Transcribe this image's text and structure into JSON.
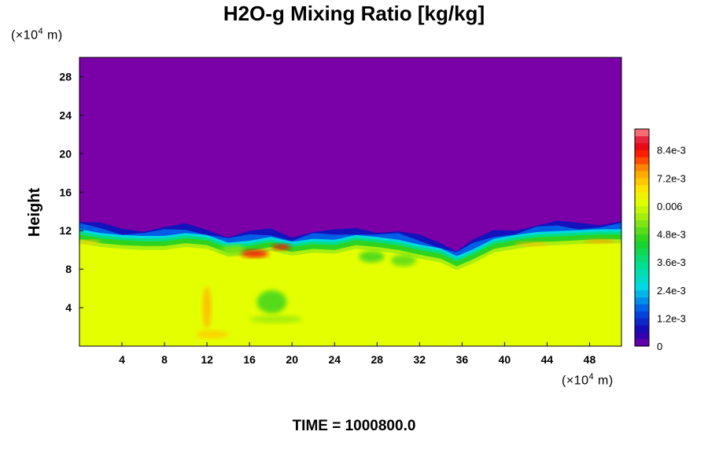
{
  "chart_data": {
    "type": "heatmap",
    "title": "H2O-g Mixing Ratio [kg/kg]",
    "ylabel": "Height",
    "xunit": {
      "prefix": "(×10",
      "exp": "4",
      "suffix": " m)"
    },
    "yunit": {
      "prefix": "(×10",
      "exp": "4",
      "suffix": " m)"
    },
    "xlim": [
      0,
      51
    ],
    "ylim": [
      0,
      30
    ],
    "xticks": [
      "4",
      "8",
      "12",
      "16",
      "20",
      "24",
      "28",
      "32",
      "36",
      "40",
      "44",
      "48"
    ],
    "xtick_values": [
      4,
      8,
      12,
      16,
      20,
      24,
      28,
      32,
      36,
      40,
      44,
      48
    ],
    "yticks": [
      "4",
      "8",
      "12",
      "16",
      "20",
      "24",
      "28"
    ],
    "ytick_values": [
      4,
      8,
      12,
      16,
      20,
      24,
      28
    ],
    "colorbar": {
      "min": 0,
      "max": 0.0093,
      "labels": [
        "0",
        "1.2e-3",
        "2.4e-3",
        "3.6e-3",
        "4.8e-3",
        "0.006",
        "7.2e-3",
        "8.4e-3"
      ],
      "label_values": [
        0,
        0.0012,
        0.0024,
        0.0036,
        0.0048,
        0.006,
        0.0072,
        0.0084
      ],
      "stops": [
        {
          "v": 0.0,
          "c": "#7a00a8"
        },
        {
          "v": 0.0006,
          "c": "#1a00b0"
        },
        {
          "v": 0.0015,
          "c": "#0050e6"
        },
        {
          "v": 0.0025,
          "c": "#00d8e8"
        },
        {
          "v": 0.0035,
          "c": "#00e090"
        },
        {
          "v": 0.0045,
          "c": "#20d020"
        },
        {
          "v": 0.0055,
          "c": "#a0ec10"
        },
        {
          "v": 0.0062,
          "c": "#e4ff00"
        },
        {
          "v": 0.0068,
          "c": "#ffe000"
        },
        {
          "v": 0.0075,
          "c": "#ffa000"
        },
        {
          "v": 0.0082,
          "c": "#ff2000"
        },
        {
          "v": 0.0087,
          "c": "#e00020"
        },
        {
          "v": 0.0093,
          "c": "#ff9090"
        }
      ]
    },
    "field": {
      "upper_value": 0,
      "lower_value": 0.0062,
      "interface_height": [
        [
          0,
          11.6
        ],
        [
          2,
          11.2
        ],
        [
          4,
          11.0
        ],
        [
          6,
          10.9
        ],
        [
          8,
          10.9
        ],
        [
          10,
          11.2
        ],
        [
          12,
          11.0
        ],
        [
          14,
          10.2
        ],
        [
          16,
          10.4
        ],
        [
          18,
          10.8
        ],
        [
          20,
          10.3
        ],
        [
          22,
          10.6
        ],
        [
          24,
          10.5
        ],
        [
          26,
          11.0
        ],
        [
          28,
          10.8
        ],
        [
          30,
          10.5
        ],
        [
          32,
          10.0
        ],
        [
          34,
          9.6
        ],
        [
          35.5,
          8.8
        ],
        [
          37,
          9.5
        ],
        [
          39,
          10.6
        ],
        [
          41,
          11.0
        ],
        [
          43,
          11.3
        ],
        [
          45,
          11.4
        ],
        [
          47,
          11.5
        ],
        [
          49,
          11.6
        ],
        [
          51,
          11.6
        ]
      ],
      "features": [
        {
          "kind": "dry_blob",
          "x": 18.1,
          "y": 4.6,
          "rx": 1.4,
          "ry": 1.2,
          "value": 0.0048
        },
        {
          "kind": "dry_blob",
          "x": 27.5,
          "y": 9.3,
          "rx": 1.2,
          "ry": 0.6,
          "value": 0.0048
        },
        {
          "kind": "dry_blob",
          "x": 30.5,
          "y": 8.9,
          "rx": 1.2,
          "ry": 0.6,
          "value": 0.005
        },
        {
          "kind": "dry_blob",
          "x": 18.5,
          "y": 2.8,
          "rx": 2.5,
          "ry": 0.4,
          "value": 0.0055
        },
        {
          "kind": "dry_blob",
          "x": 14.5,
          "y": 10.0,
          "rx": 1.2,
          "ry": 0.5,
          "value": 0.0052
        },
        {
          "kind": "moist_blob",
          "x": 16.5,
          "y": 9.6,
          "rx": 1.3,
          "ry": 0.4,
          "value": 0.0084
        },
        {
          "kind": "moist_blob",
          "x": 19.0,
          "y": 10.3,
          "rx": 0.9,
          "ry": 0.3,
          "value": 0.0084
        },
        {
          "kind": "moist_blob",
          "x": 12.0,
          "y": 4.0,
          "rx": 0.4,
          "ry": 2.2,
          "value": 0.0072
        },
        {
          "kind": "moist_blob",
          "x": 12.5,
          "y": 1.2,
          "rx": 1.5,
          "ry": 0.4,
          "value": 0.007
        },
        {
          "kind": "moist_blob",
          "x": 42.5,
          "y": 10.6,
          "rx": 1.6,
          "ry": 0.2,
          "value": 0.0072
        },
        {
          "kind": "moist_blob",
          "x": 49.0,
          "y": 10.9,
          "rx": 1.5,
          "ry": 0.2,
          "value": 0.0075
        },
        {
          "kind": "moist_blob",
          "x": 1.0,
          "y": 10.8,
          "rx": 1.0,
          "ry": 0.2,
          "value": 0.007
        }
      ]
    }
  },
  "footer": {
    "time_label": "TIME = 1000800.0"
  }
}
